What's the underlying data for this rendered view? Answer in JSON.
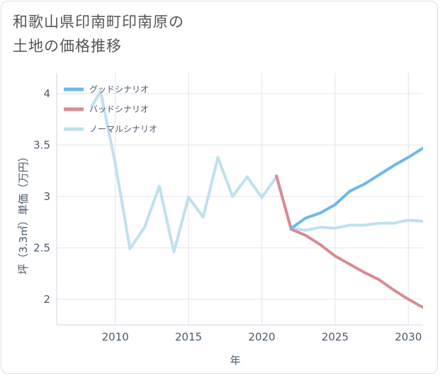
{
  "chart_data": {
    "type": "line",
    "title_line1": "和歌山県印南町印南原の",
    "title_line2": "土地の価格推移",
    "xlabel": "年",
    "ylabel": "坪（3.3㎡）単価（万円）",
    "xlim": [
      2006,
      2031
    ],
    "ylim": [
      1.75,
      4.2
    ],
    "xticks": [
      2010,
      2015,
      2020,
      2025,
      2030
    ],
    "xtick_labels": [
      "2010",
      "2015",
      "2020",
      "2025",
      "2030"
    ],
    "yticks": [
      2,
      2.5,
      3,
      3.5,
      4
    ],
    "ytick_labels": [
      "2",
      "2.5",
      "3",
      "3.5",
      "4"
    ],
    "legend_position": "top-left",
    "series": [
      {
        "name": "グッドシナリオ",
        "color": "#6cb8ec",
        "x": [
          2022,
          2023,
          2024,
          2025,
          2026,
          2027,
          2028,
          2029,
          2030,
          2031
        ],
        "values": [
          2.69,
          2.79,
          2.84,
          2.92,
          3.05,
          3.12,
          3.21,
          3.3,
          3.38,
          3.47
        ]
      },
      {
        "name": "バッドシナリオ",
        "color": "#d98b95",
        "x": [
          2021,
          2022,
          2023,
          2024,
          2025,
          2026,
          2027,
          2028,
          2029,
          2030,
          2031
        ],
        "values": [
          3.2,
          2.68,
          2.62,
          2.53,
          2.42,
          2.34,
          2.26,
          2.19,
          2.09,
          2.0,
          1.92
        ]
      },
      {
        "name": "ノーマルシナリオ",
        "color": "#bfe0ee",
        "x": [
          2008.4,
          2009,
          2010,
          2011,
          2012,
          2013,
          2014,
          2015,
          2016,
          2017,
          2018,
          2019,
          2020,
          2021,
          2022,
          2023,
          2024,
          2025,
          2026,
          2027,
          2028,
          2029,
          2030,
          2031
        ],
        "values": [
          3.88,
          4.02,
          3.32,
          2.49,
          2.7,
          3.1,
          2.46,
          2.99,
          2.8,
          3.38,
          3.0,
          3.19,
          2.99,
          3.19,
          2.69,
          2.67,
          2.7,
          2.69,
          2.72,
          2.72,
          2.74,
          2.74,
          2.77,
          2.76
        ]
      }
    ]
  }
}
